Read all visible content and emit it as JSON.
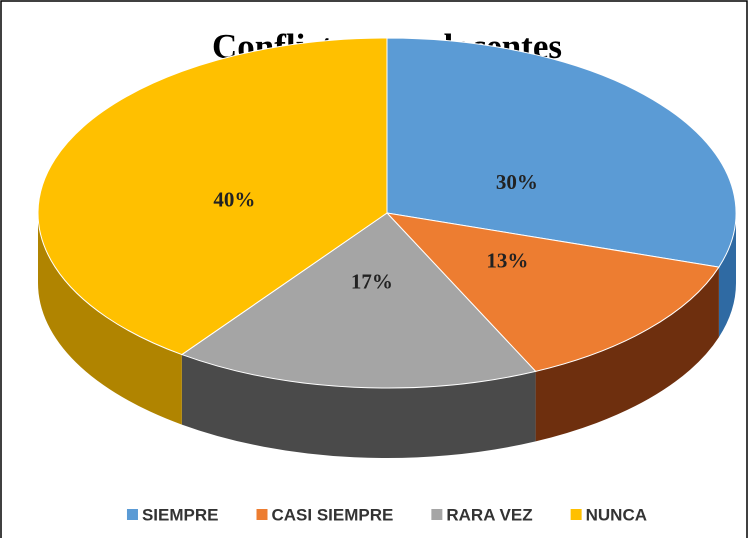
{
  "chart_data": {
    "type": "pie",
    "title": "Conflictos con docentes",
    "categories": [
      "SIEMPRE",
      "CASI SIEMPRE",
      "RARA VEZ",
      "NUNCA"
    ],
    "values": [
      30,
      13,
      17,
      40
    ],
    "value_labels": [
      "30%",
      "13%",
      "17%",
      "40%"
    ],
    "colors": [
      "#5b9bd5",
      "#ed7d31",
      "#a5a5a5",
      "#ffc000"
    ],
    "side_colors": [
      "#2f6aa3",
      "#6e2f0e",
      "#4a4a4a",
      "#b08400"
    ],
    "legend": "bottom"
  }
}
